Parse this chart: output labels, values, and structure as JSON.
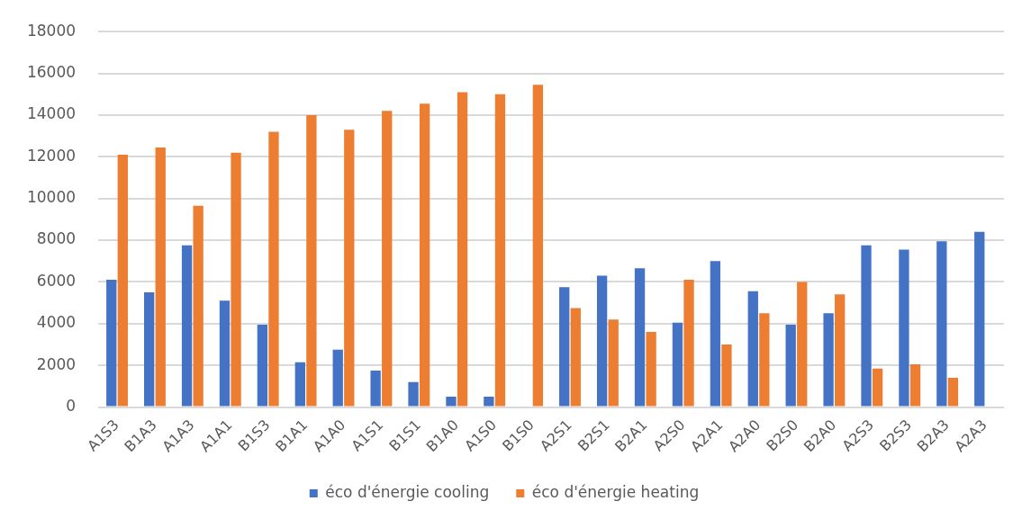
{
  "chart_data": {
    "type": "bar",
    "categories": [
      "A1S3",
      "B1A3",
      "A1A3",
      "A1A1",
      "B1S3",
      "B1A1",
      "A1A0",
      "A1S1",
      "B1S1",
      "B1A0",
      "A1S0",
      "B1S0",
      "A2S1",
      "B2S1",
      "B2A1",
      "A2S0",
      "A2A1",
      "A2A0",
      "B2S0",
      "B2A0",
      "A2S3",
      "B2S3",
      "B2A3",
      "A2A3"
    ],
    "series": [
      {
        "name": "éco d'énergie cooling",
        "color": "#4472c4",
        "values": [
          6100,
          5500,
          7750,
          5100,
          3950,
          2150,
          2750,
          1750,
          1200,
          500,
          500,
          0,
          5750,
          6300,
          6650,
          4050,
          7000,
          5550,
          3950,
          4500,
          7750,
          7550,
          7950,
          8400
        ]
      },
      {
        "name": "éco d'énergie heating",
        "color": "#ed7d31",
        "values": [
          12100,
          12450,
          9650,
          12200,
          13200,
          14000,
          13300,
          14200,
          14550,
          15100,
          15000,
          15450,
          4750,
          4200,
          3600,
          6100,
          3000,
          4500,
          6000,
          5400,
          1850,
          2050,
          1400,
          0
        ]
      }
    ],
    "ylim": [
      0,
      18000
    ],
    "yticks": [
      0,
      2000,
      4000,
      6000,
      8000,
      10000,
      12000,
      14000,
      16000,
      18000
    ],
    "grid": "y",
    "legend": "bottom"
  }
}
